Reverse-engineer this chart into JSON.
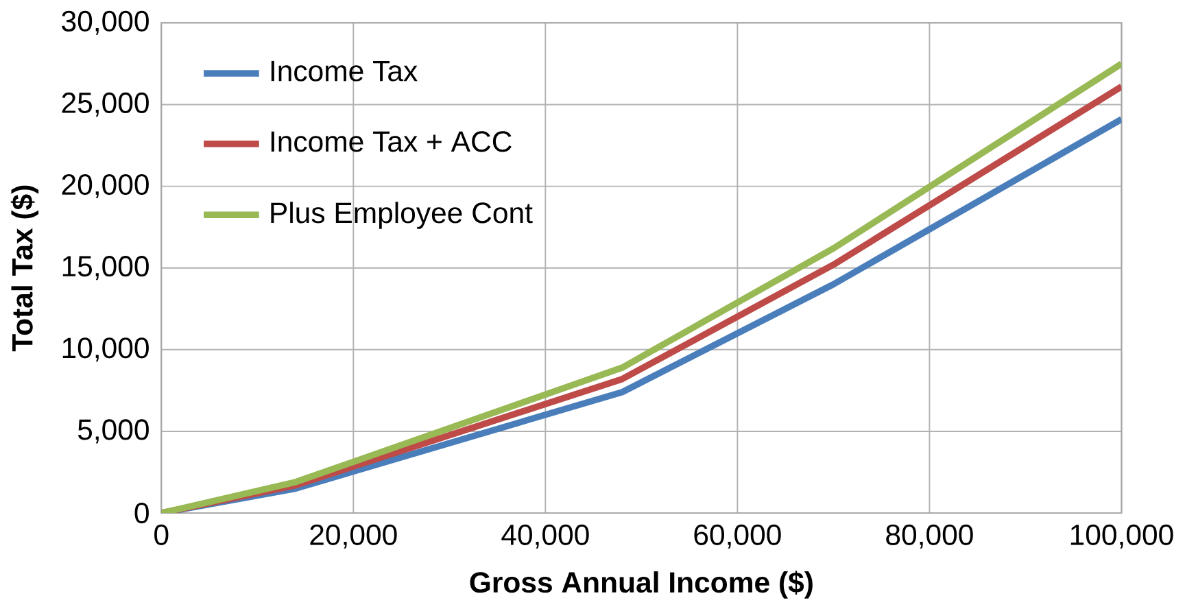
{
  "chart_data": {
    "type": "line",
    "xlabel": "Gross Annual Income ($)",
    "ylabel": "Total Tax ($)",
    "xlim": [
      0,
      100000
    ],
    "ylim": [
      0,
      30000
    ],
    "xticks": [
      {
        "value": 0,
        "label": "0"
      },
      {
        "value": 20000,
        "label": "20,000"
      },
      {
        "value": 40000,
        "label": "40,000"
      },
      {
        "value": 60000,
        "label": "60,000"
      },
      {
        "value": 80000,
        "label": "80,000"
      },
      {
        "value": 100000,
        "label": "100,000"
      }
    ],
    "yticks": [
      {
        "value": 0,
        "label": "0"
      },
      {
        "value": 5000,
        "label": "5,000"
      },
      {
        "value": 10000,
        "label": "10,000"
      },
      {
        "value": 15000,
        "label": "15,000"
      },
      {
        "value": 20000,
        "label": "20,000"
      },
      {
        "value": 25000,
        "label": "25,000"
      },
      {
        "value": 30000,
        "label": "30,000"
      }
    ],
    "x": [
      0,
      14000,
      48000,
      70000,
      100000
    ],
    "series": [
      {
        "name": "Income Tax",
        "color": "#4a7ebb",
        "values": [
          0,
          1500,
          7400,
          14000,
          24100
        ]
      },
      {
        "name": "Income Tax + ACC",
        "color": "#be4b48",
        "values": [
          0,
          1700,
          8200,
          15200,
          26100
        ]
      },
      {
        "name": "Plus Employee Cont",
        "color": "#98b954",
        "values": [
          0,
          1900,
          8900,
          16200,
          27500
        ]
      }
    ],
    "grid": true,
    "legend": "top left",
    "marker": "none",
    "line_style": "solid"
  }
}
